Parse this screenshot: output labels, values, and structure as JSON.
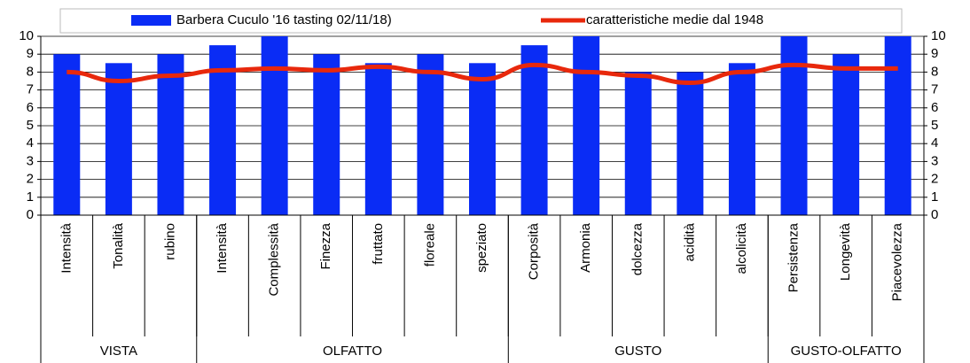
{
  "chart_data": {
    "type": "bar",
    "categories": [
      "Intensità",
      "Tonalità",
      "rubino",
      "Intensità",
      "Complessità",
      "Finezza",
      "fruttato",
      "floreale",
      "speziato",
      "Corposità",
      "Armonia",
      "dolcezza",
      "acidità",
      "alcolicità",
      "Persistenza",
      "Longevità",
      "Piacevolezza"
    ],
    "groups": [
      {
        "label": "VISTA",
        "size": 3
      },
      {
        "label": "OLFATTO",
        "size": 6
      },
      {
        "label": "GUSTO",
        "size": 5
      },
      {
        "label": "GUSTO-OLFATTO",
        "size": 3
      }
    ],
    "series": [
      {
        "name": "Barbera Cuculo '16 tasting 02/11/18)",
        "type": "bar",
        "color": "#0a2cf5",
        "values": [
          9,
          8.5,
          9,
          9.5,
          10,
          9,
          8.5,
          9,
          8.5,
          9.5,
          10,
          8,
          8,
          8.5,
          10,
          9,
          10
        ]
      },
      {
        "name": "caratteristiche medie dal 1948",
        "type": "line",
        "axis": "y2",
        "color": "#e8280c",
        "values": [
          8.0,
          7.5,
          7.8,
          8.1,
          8.2,
          8.1,
          8.3,
          8.0,
          7.6,
          8.4,
          8.0,
          7.8,
          7.4,
          8.0,
          8.4,
          8.2,
          8.2
        ]
      }
    ],
    "ylim": [
      0,
      10
    ],
    "yticks": [
      0,
      1,
      2,
      3,
      4,
      5,
      6,
      7,
      8,
      9,
      10
    ],
    "y2lim": [
      0,
      10
    ],
    "y2ticks": [
      0,
      1,
      2,
      3,
      4,
      5,
      6,
      7,
      8,
      9,
      10
    ],
    "grid": true,
    "legend": "top"
  }
}
